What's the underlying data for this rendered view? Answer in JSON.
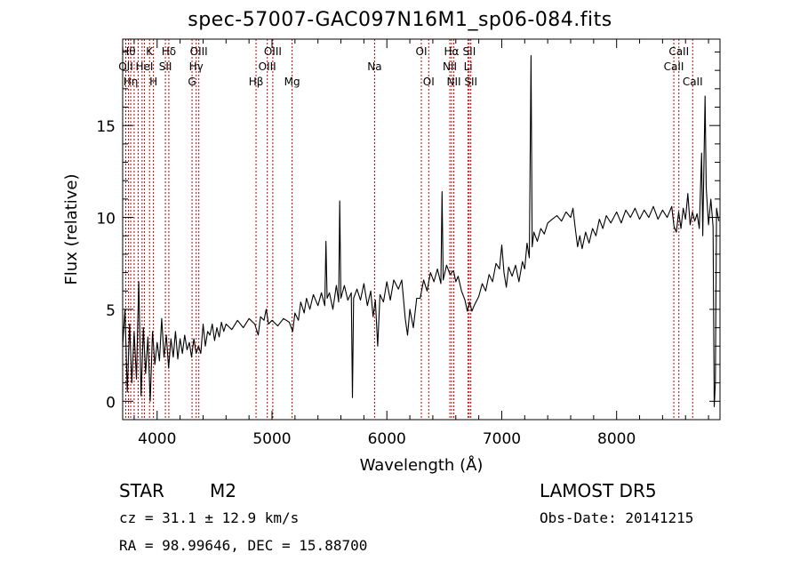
{
  "header": {
    "title": "spec-57007-GAC097N16M1_sp06-084.fits"
  },
  "info": {
    "object_class": "STAR",
    "subclass": "M2",
    "survey": "LAMOST DR5",
    "cz": "cz = 31.1 ± 12.9 km/s",
    "obs_date": "Obs-Date: 20141215",
    "coords": "RA =  98.99646, DEC =  15.88700"
  },
  "chart_data": {
    "type": "line",
    "title": "spec-57007-GAC097N16M1_sp06-084.fits",
    "xlabel": "Wavelength (Å)",
    "ylabel": "Flux (relative)",
    "xlim": [
      3700,
      8900
    ],
    "ylim": [
      -1,
      19.7
    ],
    "xticks": [
      4000,
      5000,
      6000,
      7000,
      8000
    ],
    "yticks": [
      0,
      5,
      10,
      15
    ],
    "line_color": "#000000",
    "marker_color": "#c00000",
    "grid": false,
    "series": [
      {
        "points": [
          [
            3700,
            3.0
          ],
          [
            3720,
            5.0
          ],
          [
            3740,
            0.5
          ],
          [
            3760,
            4.2
          ],
          [
            3780,
            1.0
          ],
          [
            3800,
            3.8
          ],
          [
            3820,
            1.2
          ],
          [
            3840,
            6.5
          ],
          [
            3860,
            0.3
          ],
          [
            3880,
            4.0
          ],
          [
            3900,
            1.5
          ],
          [
            3920,
            3.5
          ],
          [
            3940,
            0.0
          ],
          [
            3960,
            3.8
          ],
          [
            3980,
            2.0
          ],
          [
            4000,
            3.2
          ],
          [
            4020,
            2.2
          ],
          [
            4040,
            4.5
          ],
          [
            4060,
            2.4
          ],
          [
            4080,
            3.6
          ],
          [
            4100,
            1.8
          ],
          [
            4120,
            3.4
          ],
          [
            4140,
            2.4
          ],
          [
            4160,
            3.8
          ],
          [
            4180,
            2.3
          ],
          [
            4200,
            3.4
          ],
          [
            4220,
            2.6
          ],
          [
            4240,
            3.6
          ],
          [
            4260,
            2.8
          ],
          [
            4280,
            3.2
          ],
          [
            4300,
            2.4
          ],
          [
            4320,
            3.4
          ],
          [
            4340,
            2.6
          ],
          [
            4360,
            3.0
          ],
          [
            4380,
            2.6
          ],
          [
            4400,
            4.2
          ],
          [
            4420,
            3.0
          ],
          [
            4440,
            3.8
          ],
          [
            4460,
            3.6
          ],
          [
            4480,
            4.2
          ],
          [
            4500,
            3.3
          ],
          [
            4520,
            4.0
          ],
          [
            4540,
            3.5
          ],
          [
            4560,
            4.3
          ],
          [
            4580,
            3.8
          ],
          [
            4600,
            4.2
          ],
          [
            4650,
            3.9
          ],
          [
            4700,
            4.4
          ],
          [
            4750,
            4.0
          ],
          [
            4800,
            4.5
          ],
          [
            4850,
            4.2
          ],
          [
            4880,
            3.6
          ],
          [
            4900,
            4.6
          ],
          [
            4930,
            4.4
          ],
          [
            4950,
            5.0
          ],
          [
            4970,
            4.2
          ],
          [
            5000,
            4.4
          ],
          [
            5050,
            4.1
          ],
          [
            5100,
            4.5
          ],
          [
            5150,
            4.3
          ],
          [
            5180,
            3.8
          ],
          [
            5200,
            4.8
          ],
          [
            5230,
            4.4
          ],
          [
            5250,
            5.4
          ],
          [
            5280,
            4.8
          ],
          [
            5300,
            5.6
          ],
          [
            5330,
            5.0
          ],
          [
            5360,
            5.8
          ],
          [
            5400,
            5.2
          ],
          [
            5430,
            5.9
          ],
          [
            5460,
            5.2
          ],
          [
            5470,
            8.7
          ],
          [
            5480,
            5.6
          ],
          [
            5500,
            5.9
          ],
          [
            5530,
            5.0
          ],
          [
            5560,
            6.3
          ],
          [
            5580,
            5.4
          ],
          [
            5590,
            10.9
          ],
          [
            5600,
            5.6
          ],
          [
            5630,
            6.3
          ],
          [
            5660,
            5.5
          ],
          [
            5690,
            5.9
          ],
          [
            5700,
            0.2
          ],
          [
            5710,
            5.6
          ],
          [
            5740,
            6.1
          ],
          [
            5770,
            5.5
          ],
          [
            5800,
            6.4
          ],
          [
            5830,
            5.2
          ],
          [
            5860,
            6.0
          ],
          [
            5880,
            4.6
          ],
          [
            5900,
            5.5
          ],
          [
            5920,
            3.0
          ],
          [
            5940,
            5.8
          ],
          [
            5970,
            5.4
          ],
          [
            6000,
            6.5
          ],
          [
            6030,
            5.5
          ],
          [
            6060,
            6.6
          ],
          [
            6100,
            6.1
          ],
          [
            6130,
            6.6
          ],
          [
            6160,
            4.5
          ],
          [
            6180,
            3.6
          ],
          [
            6200,
            5.0
          ],
          [
            6230,
            4.0
          ],
          [
            6260,
            5.6
          ],
          [
            6290,
            5.6
          ],
          [
            6320,
            6.6
          ],
          [
            6350,
            6.0
          ],
          [
            6380,
            7.0
          ],
          [
            6410,
            6.5
          ],
          [
            6440,
            7.2
          ],
          [
            6470,
            6.4
          ],
          [
            6480,
            11.4
          ],
          [
            6490,
            6.6
          ],
          [
            6520,
            7.4
          ],
          [
            6550,
            6.9
          ],
          [
            6580,
            7.1
          ],
          [
            6600,
            6.5
          ],
          [
            6620,
            6.8
          ],
          [
            6650,
            6.0
          ],
          [
            6680,
            5.5
          ],
          [
            6700,
            4.9
          ],
          [
            6720,
            5.4
          ],
          [
            6740,
            4.9
          ],
          [
            6760,
            5.2
          ],
          [
            6800,
            5.7
          ],
          [
            6830,
            6.4
          ],
          [
            6860,
            6.0
          ],
          [
            6890,
            6.9
          ],
          [
            6920,
            6.5
          ],
          [
            6950,
            7.5
          ],
          [
            6980,
            7.2
          ],
          [
            7000,
            8.5
          ],
          [
            7020,
            7.0
          ],
          [
            7040,
            6.2
          ],
          [
            7060,
            7.3
          ],
          [
            7090,
            6.8
          ],
          [
            7120,
            7.4
          ],
          [
            7150,
            6.5
          ],
          [
            7180,
            7.6
          ],
          [
            7200,
            7.2
          ],
          [
            7220,
            8.6
          ],
          [
            7240,
            7.8
          ],
          [
            7255,
            18.8
          ],
          [
            7265,
            8.4
          ],
          [
            7280,
            9.2
          ],
          [
            7310,
            8.7
          ],
          [
            7340,
            9.4
          ],
          [
            7370,
            9.1
          ],
          [
            7400,
            9.7
          ],
          [
            7440,
            9.9
          ],
          [
            7480,
            10.1
          ],
          [
            7520,
            9.8
          ],
          [
            7560,
            10.3
          ],
          [
            7600,
            10.0
          ],
          [
            7620,
            10.5
          ],
          [
            7640,
            9.4
          ],
          [
            7660,
            8.4
          ],
          [
            7680,
            9.0
          ],
          [
            7700,
            8.3
          ],
          [
            7730,
            9.2
          ],
          [
            7760,
            8.6
          ],
          [
            7790,
            9.4
          ],
          [
            7820,
            9.0
          ],
          [
            7850,
            9.9
          ],
          [
            7880,
            9.4
          ],
          [
            7910,
            10.1
          ],
          [
            7950,
            9.7
          ],
          [
            8000,
            10.3
          ],
          [
            8040,
            9.7
          ],
          [
            8080,
            10.4
          ],
          [
            8120,
            10.0
          ],
          [
            8160,
            10.5
          ],
          [
            8200,
            9.9
          ],
          [
            8240,
            10.4
          ],
          [
            8280,
            10.0
          ],
          [
            8320,
            10.6
          ],
          [
            8360,
            9.9
          ],
          [
            8400,
            10.4
          ],
          [
            8440,
            10.0
          ],
          [
            8480,
            10.6
          ],
          [
            8500,
            9.5
          ],
          [
            8520,
            9.2
          ],
          [
            8540,
            10.3
          ],
          [
            8560,
            9.4
          ],
          [
            8580,
            10.5
          ],
          [
            8600,
            9.9
          ],
          [
            8620,
            11.3
          ],
          [
            8640,
            9.6
          ],
          [
            8660,
            10.3
          ],
          [
            8680,
            9.8
          ],
          [
            8700,
            10.2
          ],
          [
            8720,
            9.4
          ],
          [
            8740,
            13.5
          ],
          [
            8750,
            9.0
          ],
          [
            8770,
            16.6
          ],
          [
            8780,
            11.6
          ],
          [
            8800,
            9.6
          ],
          [
            8820,
            11.0
          ],
          [
            8840,
            9.5
          ],
          [
            8850,
            -0.3
          ],
          [
            8860,
            1.0
          ],
          [
            8870,
            10.5
          ],
          [
            8890,
            9.8
          ]
        ]
      }
    ],
    "line_markers": [
      {
        "w": 3727,
        "label": "OII",
        "row": 2
      },
      {
        "w": 3750,
        "label": "Hθ",
        "row": 1
      },
      {
        "w": 3770,
        "label": "Hη",
        "row": 3
      },
      {
        "w": 3800,
        "label": "",
        "row": 0
      },
      {
        "w": 3835,
        "label": "",
        "row": 0
      },
      {
        "w": 3869,
        "label": "",
        "row": 0
      },
      {
        "w": 3889,
        "label": "HeI",
        "row": 2
      },
      {
        "w": 3934,
        "label": "K",
        "row": 1
      },
      {
        "w": 3968,
        "label": "H",
        "row": 3
      },
      {
        "w": 4072,
        "label": "SII",
        "row": 2
      },
      {
        "w": 4102,
        "label": "Hδ",
        "row": 1
      },
      {
        "w": 4304,
        "label": "G",
        "row": 3
      },
      {
        "w": 4340,
        "label": "Hγ",
        "row": 2
      },
      {
        "w": 4363,
        "label": "OIII",
        "row": 1
      },
      {
        "w": 4861,
        "label": "Hβ",
        "row": 3
      },
      {
        "w": 4959,
        "label": "OIII",
        "row": 2
      },
      {
        "w": 5007,
        "label": "OIII",
        "row": 1
      },
      {
        "w": 5175,
        "label": "Mg",
        "row": 3
      },
      {
        "w": 5893,
        "label": "Na",
        "row": 2
      },
      {
        "w": 6300,
        "label": "OI",
        "row": 1
      },
      {
        "w": 6364,
        "label": "OI",
        "row": 3
      },
      {
        "w": 6548,
        "label": "NII",
        "row": 2
      },
      {
        "w": 6563,
        "label": "Hα",
        "row": 1
      },
      {
        "w": 6583,
        "label": "NII",
        "row": 3
      },
      {
        "w": 6707,
        "label": "Li",
        "row": 2
      },
      {
        "w": 6717,
        "label": "SII",
        "row": 1
      },
      {
        "w": 6731,
        "label": "SII",
        "row": 3
      },
      {
        "w": 8498,
        "label": "CaII",
        "row": 2
      },
      {
        "w": 8542,
        "label": "CaII",
        "row": 1
      },
      {
        "w": 8662,
        "label": "CaII",
        "row": 3
      }
    ]
  }
}
